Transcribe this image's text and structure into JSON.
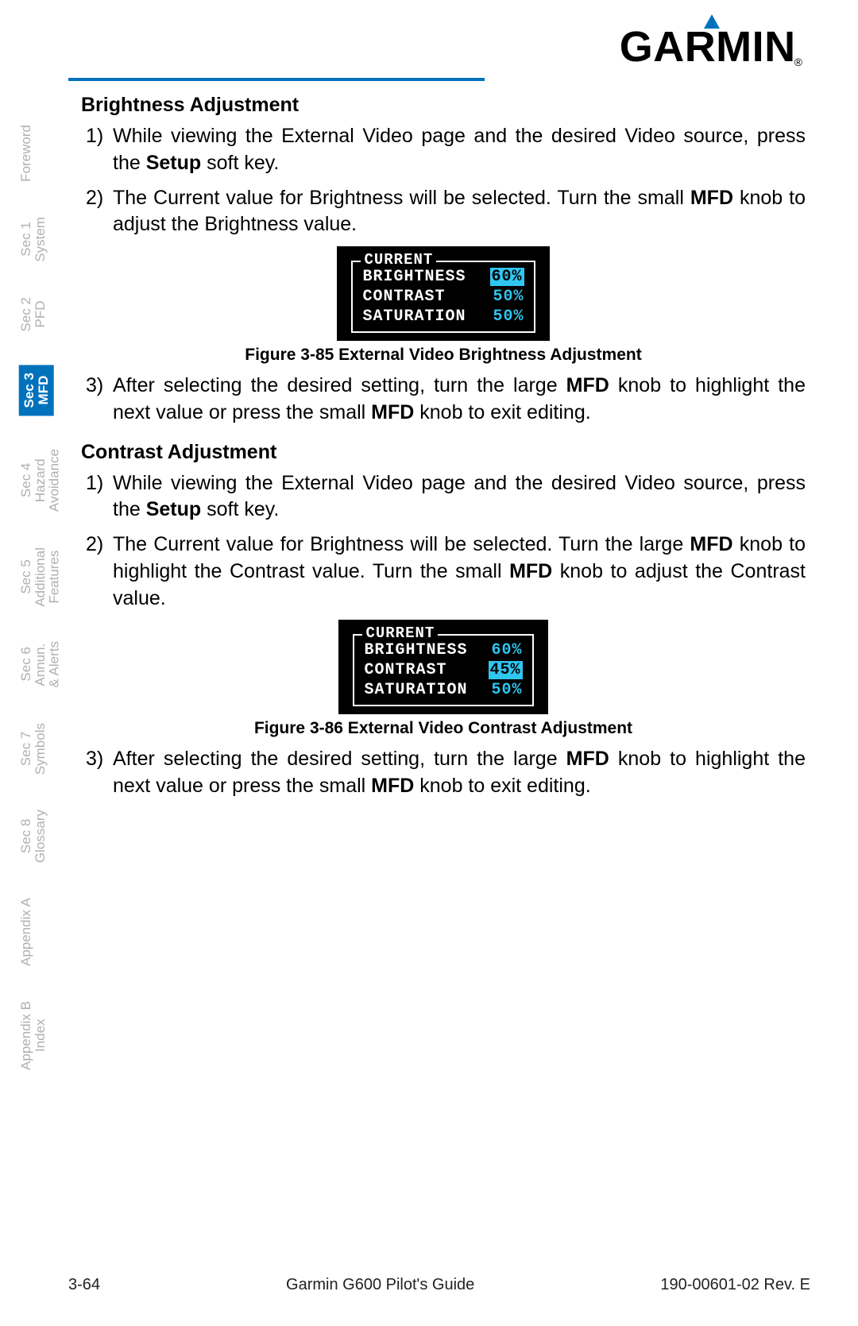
{
  "logo": {
    "text": "GARMIN",
    "reg": "®",
    "triangle_color": "#0072bc",
    "rule_color": "#0072bc"
  },
  "tabs": [
    {
      "line1": "",
      "line2": "Foreword",
      "active": false
    },
    {
      "line1": "Sec 1",
      "line2": "System",
      "active": false
    },
    {
      "line1": "Sec 2",
      "line2": "PFD",
      "active": false
    },
    {
      "line1": "Sec 3",
      "line2": "MFD",
      "active": true
    },
    {
      "line1": "Sec 4",
      "line2": "Hazard\nAvoidance",
      "active": false
    },
    {
      "line1": "Sec 5",
      "line2": "Additional\nFeatures",
      "active": false
    },
    {
      "line1": "Sec 6",
      "line2": "Annun.\n& Alerts",
      "active": false
    },
    {
      "line1": "Sec 7",
      "line2": "Symbols",
      "active": false
    },
    {
      "line1": "Sec 8",
      "line2": "Glossary",
      "active": false
    },
    {
      "line1": "",
      "line2": "Appendix A",
      "active": false
    },
    {
      "line1": "Appendix B",
      "line2": "Index",
      "active": false
    }
  ],
  "section_a": {
    "heading": "Brightness Adjustment",
    "steps": {
      "s1p1": "While viewing the External Video page and the desired Video source, press the ",
      "s1b": "Setup",
      "s1p2": " soft key.",
      "s2p1": "The Current value for Brightness will be selected. Turn the small ",
      "s2b": "MFD",
      "s2p2": " knob to adjust the Brightness value.",
      "s3p1": "After selecting the desired setting, turn the large ",
      "s3b1": "MFD",
      "s3p2": " knob to highlight the next value or press the small ",
      "s3b2": "MFD",
      "s3p3": " knob to exit editing."
    }
  },
  "section_b": {
    "heading": "Contrast Adjustment",
    "steps": {
      "s1p1": "While viewing the External Video page and the desired Video source, press the ",
      "s1b": "Setup",
      "s1p2": " soft key.",
      "s2p1": "The Current value for Brightness will be selected. Turn the large ",
      "s2b1": "MFD",
      "s2p2": " knob to highlight the Contrast value. Turn the small ",
      "s2b2": "MFD",
      "s2p3": " knob to adjust the Contrast value.",
      "s3p1": "After selecting the desired setting, turn the large ",
      "s3b1": "MFD",
      "s3p2": " knob to highlight the next value or press the small ",
      "s3b2": "MFD",
      "s3p3": " knob to exit editing."
    }
  },
  "lcd_common": {
    "legend": "CURRENT",
    "labels": [
      "BRIGHTNESS",
      "CONTRAST",
      "SATURATION"
    ],
    "value_color": "#2fc6f0"
  },
  "fig85": {
    "caption": "Figure 3-85  External Video Brightness Adjustment",
    "values": [
      "60%",
      "50%",
      "50%"
    ],
    "selected_index": 0
  },
  "fig86": {
    "caption": "Figure 3-86  External Video Contrast Adjustment",
    "values": [
      "60%",
      "45%",
      "50%"
    ],
    "selected_index": 1
  },
  "footer": {
    "left": "3-64",
    "center": "Garmin G600 Pilot's Guide",
    "right": "190-00601-02  Rev. E"
  }
}
